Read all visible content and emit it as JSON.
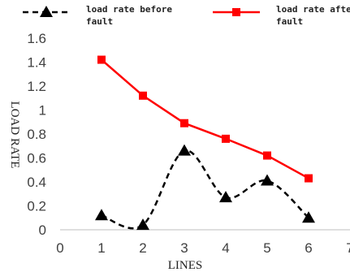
{
  "chart_data": {
    "type": "line",
    "xlabel": "LINES",
    "ylabel": "LOAD RATE",
    "xlim": [
      0,
      7
    ],
    "ylim": [
      0,
      1.6
    ],
    "x_ticks": [
      "0",
      "1",
      "2",
      "3",
      "4",
      "5",
      "6",
      "7"
    ],
    "y_ticks": [
      "0",
      "0.2",
      "0.4",
      "0.6",
      "0.8",
      "1",
      "1.2",
      "1.4",
      "1.6"
    ],
    "grid": false,
    "legend_position": "top",
    "series": [
      {
        "name": "load rate before fault",
        "name_lines": [
          "load rate before",
          "fault"
        ],
        "x": [
          1,
          2,
          3,
          4,
          5,
          6
        ],
        "y": [
          0.12,
          0.04,
          0.66,
          0.27,
          0.41,
          0.1
        ],
        "color": "#000000",
        "line_style": "dashed",
        "marker": "triangle"
      },
      {
        "name": "load rate after fault",
        "name_lines": [
          "load rate after",
          "fault"
        ],
        "x": [
          1,
          2,
          3,
          4,
          5,
          6
        ],
        "y": [
          1.42,
          1.12,
          0.89,
          0.76,
          0.62,
          0.43
        ],
        "color": "#ff0000",
        "line_style": "solid",
        "marker": "square"
      }
    ]
  }
}
